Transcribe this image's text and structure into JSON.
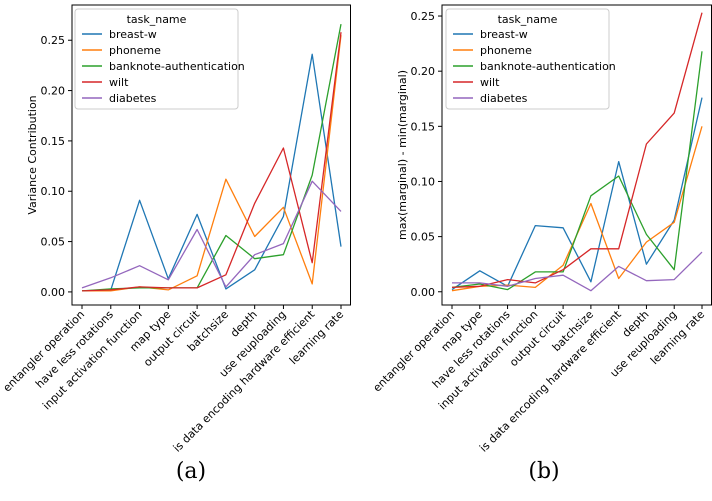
{
  "captions": [
    "(a)",
    "(b)"
  ],
  "chart_data": [
    {
      "type": "line",
      "title": "",
      "xlabel": "",
      "ylabel": "Variance Contribution",
      "ylim": [
        -0.013,
        0.285
      ],
      "yticks": [
        0.0,
        0.05,
        0.1,
        0.15,
        0.2,
        0.25
      ],
      "ytick_labels": [
        "0.00",
        "0.05",
        "0.10",
        "0.15",
        "0.20",
        "0.25"
      ],
      "grid": false,
      "legend": {
        "title": "task_name",
        "placement": "top-left"
      },
      "categories": [
        "entangler operation",
        "have less rotations",
        "input activation function",
        "map type",
        "output circuit",
        "batchsize",
        "depth",
        "use reuploading",
        "is data encoding hardware efficient",
        "learning rate"
      ],
      "series": [
        {
          "name": "breast-w",
          "color": "#1f77b4",
          "values": [
            0.001,
            0.002,
            0.091,
            0.013,
            0.077,
            0.003,
            0.022,
            0.075,
            0.236,
            0.045
          ]
        },
        {
          "name": "phoneme",
          "color": "#ff7f0e",
          "values": [
            0.001,
            0.001,
            0.005,
            0.002,
            0.016,
            0.112,
            0.055,
            0.084,
            0.008,
            0.255
          ]
        },
        {
          "name": "banknote-authentication",
          "color": "#2ca02c",
          "values": [
            0.001,
            0.003,
            0.004,
            0.004,
            0.004,
            0.056,
            0.033,
            0.037,
            0.116,
            0.266
          ]
        },
        {
          "name": "wilt",
          "color": "#d62728",
          "values": [
            0.001,
            0.002,
            0.005,
            0.004,
            0.004,
            0.017,
            0.088,
            0.143,
            0.029,
            0.258
          ]
        },
        {
          "name": "diabetes",
          "color": "#9467bd",
          "values": [
            0.004,
            0.014,
            0.026,
            0.012,
            0.062,
            0.005,
            0.037,
            0.048,
            0.11,
            0.08
          ]
        }
      ]
    },
    {
      "type": "line",
      "title": "",
      "xlabel": "",
      "ylabel": "max(marginal) - min(marginal)",
      "ylim": [
        -0.012,
        0.26
      ],
      "yticks": [
        0.0,
        0.05,
        0.1,
        0.15,
        0.2,
        0.25
      ],
      "ytick_labels": [
        "0.00",
        "0.05",
        "0.10",
        "0.15",
        "0.20",
        "0.25"
      ],
      "grid": false,
      "legend": {
        "title": "task_name",
        "placement": "top-left"
      },
      "categories": [
        "entangler operation",
        "map type",
        "have less rotations",
        "input activation function",
        "output circuit",
        "batchsize",
        "is data encoding hardware efficient",
        "depth",
        "use reuploading",
        "learning rate"
      ],
      "series": [
        {
          "name": "breast-w",
          "color": "#1f77b4",
          "values": [
            0.002,
            0.019,
            0.005,
            0.06,
            0.058,
            0.009,
            0.118,
            0.025,
            0.065,
            0.176
          ]
        },
        {
          "name": "phoneme",
          "color": "#ff7f0e",
          "values": [
            0.001,
            0.005,
            0.006,
            0.004,
            0.024,
            0.08,
            0.012,
            0.045,
            0.063,
            0.15
          ]
        },
        {
          "name": "banknote-authentication",
          "color": "#2ca02c",
          "values": [
            0.004,
            0.007,
            0.002,
            0.018,
            0.018,
            0.087,
            0.105,
            0.052,
            0.02,
            0.218
          ]
        },
        {
          "name": "wilt",
          "color": "#d62728",
          "values": [
            0.004,
            0.005,
            0.011,
            0.008,
            0.02,
            0.039,
            0.039,
            0.134,
            0.162,
            0.253
          ]
        },
        {
          "name": "diabetes",
          "color": "#9467bd",
          "values": [
            0.008,
            0.008,
            0.005,
            0.012,
            0.015,
            0.001,
            0.023,
            0.01,
            0.011,
            0.036
          ]
        }
      ]
    }
  ]
}
